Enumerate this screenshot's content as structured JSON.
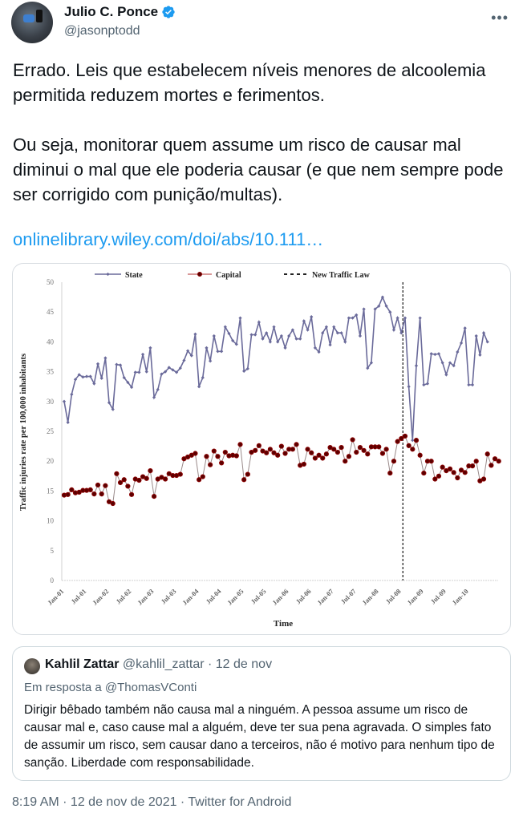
{
  "author": {
    "name": "Julio C. Ponce",
    "handle": "@jasonptodd",
    "verified": true,
    "more_icon": "more-horizontal-icon"
  },
  "tweet": {
    "paragraphs": [
      "Errado. Leis que estabelecem níveis menores de alcoolemia permitida reduzem mortes e ferimentos.",
      "Ou seja, monitorar quem assume um risco de causar mal diminui o mal que ele poderia causar (e que nem sempre pode ser corrigido com punição/multas)."
    ],
    "link": "onlinelibrary.wiley.com/doi/abs/10.111…"
  },
  "quote": {
    "name": "Kahlil Zattar",
    "handle": "@kahlil_zattar",
    "separator": "·",
    "date": "12 de nov",
    "reply_to": "Em resposta a @ThomasVConti",
    "body": "Dirigir bêbado também não causa mal a ninguém. A pessoa assume um risco de causar mal e, caso cause mal a alguém, deve ter sua pena agravada. O simples fato de assumir um risco, sem causar dano a terceiros, não é motivo para nenhum tipo de sanção. Liberdade com responsabilidade."
  },
  "footer": {
    "text": "8:19 AM · 12 de nov de 2021 · Twitter for Android"
  },
  "colors": {
    "link": "#1d9bf0",
    "state": "#6a6a9a",
    "capital": "#8b0000",
    "verified": "#1d9bf0"
  },
  "chart_data": {
    "type": "line",
    "title": "",
    "xlabel": "Time",
    "ylabel": "Traffic injuries rate per 100,000 inhabitants",
    "ylim": [
      0,
      50
    ],
    "yticks": [
      0,
      5,
      10,
      15,
      20,
      25,
      30,
      35,
      40,
      45,
      50
    ],
    "xtick_labels": [
      "Jan-01",
      "Jul-01",
      "Jan-02",
      "Jul-02",
      "Jan-03",
      "Jul-03",
      "Jan-04",
      "Jul-04",
      "Jan-05",
      "Jul-05",
      "Jan-06",
      "Jul-06",
      "Jan-07",
      "Jul-07",
      "Jan-08",
      "Jul-08",
      "Jan-09",
      "Jul-09",
      "Jan-10"
    ],
    "grid": false,
    "legend_position": "top",
    "legend": [
      "State",
      "Capital",
      "New Traffic Law"
    ],
    "annotations": [
      {
        "type": "vertical-dashed-line",
        "label": "New Traffic Law",
        "x_index": 90,
        "x_label": "Jul-08"
      }
    ],
    "x_start": "Jan-01",
    "frequency": "monthly",
    "series": [
      {
        "name": "State",
        "color": "#6a6a9a",
        "marker": "diamond",
        "values": [
          30,
          26.5,
          31.2,
          33.7,
          34.5,
          34.1,
          34.2,
          34.2,
          33,
          36.3,
          33.9,
          37.3,
          29.8,
          28.7,
          36.2,
          36.1,
          34,
          33.2,
          32.4,
          34.9,
          34.9,
          37.9,
          35,
          39,
          30.7,
          32,
          34.6,
          35,
          35.7,
          35.3,
          34.9,
          35.6,
          36.9,
          38.5,
          37.7,
          41.3,
          32.5,
          34,
          39,
          36.8,
          41,
          38.4,
          38.4,
          42.5,
          41.4,
          40.2,
          39.6,
          44,
          35.1,
          35.5,
          41.2,
          41.2,
          43.3,
          40.5,
          41.5,
          40,
          42.5,
          40,
          41,
          39,
          41,
          42,
          40.5,
          40.5,
          43.5,
          42,
          44.2,
          39,
          38.3,
          41.5,
          42.5,
          39.5,
          42.5,
          41.5,
          41.5,
          40,
          44,
          44,
          44.5,
          41,
          45.5,
          35.6,
          36.5,
          45.5,
          46,
          47.5,
          46,
          45,
          42,
          44,
          41.5,
          44,
          32.5,
          23.5,
          36,
          44,
          32.8,
          33,
          38,
          37.9,
          38,
          36.5,
          34.5,
          36.5,
          36,
          38.3,
          39.8,
          42.3,
          32.8,
          32.8,
          41,
          37.8,
          41.5,
          40
        ]
      },
      {
        "name": "Capital",
        "color": "#8b0000",
        "marker": "circle",
        "values": [
          14.3,
          14.4,
          15.2,
          14.7,
          14.8,
          15.1,
          15.1,
          15.2,
          14.5,
          16,
          14.5,
          15.9,
          13.2,
          12.9,
          17.9,
          16.4,
          16.9,
          15.8,
          14.4,
          17,
          16.8,
          17.4,
          17.1,
          18.4,
          14.1,
          17,
          17.3,
          17,
          17.9,
          17.6,
          17.6,
          17.8,
          20.4,
          20.7,
          21,
          21.3,
          16.9,
          17.4,
          20.8,
          19.4,
          21.7,
          20.8,
          19.7,
          21.5,
          20.9,
          21,
          20.9,
          22.8,
          16.9,
          17.8,
          21.5,
          21.8,
          22.6,
          21.7,
          21.4,
          22,
          21.4,
          21,
          22.5,
          21.3,
          22,
          22,
          22.8,
          19.3,
          19.5,
          22,
          21.4,
          20.5,
          21,
          20.5,
          21.2,
          22.3,
          22,
          21.5,
          22.3,
          20,
          20.8,
          23.6,
          21.5,
          22.3,
          21.8,
          21.2,
          22.4,
          22.4,
          22.4,
          21.3,
          22,
          18,
          20,
          23.3,
          23.8,
          24.2,
          22.6,
          22,
          23.5,
          21,
          18,
          20,
          20,
          17,
          17.5,
          19,
          18.4,
          18.7,
          18.1,
          17.2,
          18.5,
          18.1,
          19.2,
          19.2,
          20,
          16.7,
          17,
          21.2,
          19.3,
          20.4,
          20
        ]
      }
    ]
  }
}
